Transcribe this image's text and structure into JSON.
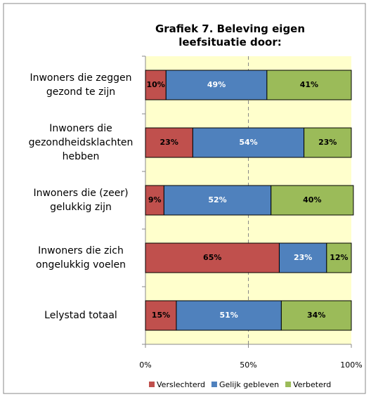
{
  "chart_data": {
    "type": "stacked_bar_horizontal",
    "title": "Grafiek 7. Beleving eigen leefsituatie door:",
    "categories": [
      "Inwoners die zeggen gezond te zijn",
      "Inwoners die gezondheidsklachten hebben",
      "Inwoners die (zeer) gelukkig zijn",
      "Inwoners die zich ongelukkig voelen",
      "Lelystad totaal"
    ],
    "series": [
      {
        "name": "Verslechterd",
        "color": "#c0504d",
        "values": [
          10,
          23,
          9,
          65,
          15
        ],
        "value_labels": [
          "10%",
          "23%",
          "9%",
          "65%",
          "15%"
        ]
      },
      {
        "name": "Gelijk gebleven",
        "color": "#4f81bd",
        "values": [
          49,
          54,
          52,
          23,
          51
        ],
        "value_labels": [
          "49%",
          "54%",
          "52%",
          "23%",
          "51%"
        ]
      },
      {
        "name": "Verbeterd",
        "color": "#9bbb59",
        "values": [
          41,
          23,
          40,
          12,
          34
        ],
        "value_labels": [
          "41%",
          "23%",
          "40%",
          "12%",
          "34%"
        ]
      }
    ],
    "xlim": [
      0,
      100
    ],
    "xticks": [
      {
        "value": 0,
        "label": "0%"
      },
      {
        "value": 50,
        "label": "50%"
      },
      {
        "value": 100,
        "label": "100%"
      }
    ],
    "legend": "bottom"
  }
}
